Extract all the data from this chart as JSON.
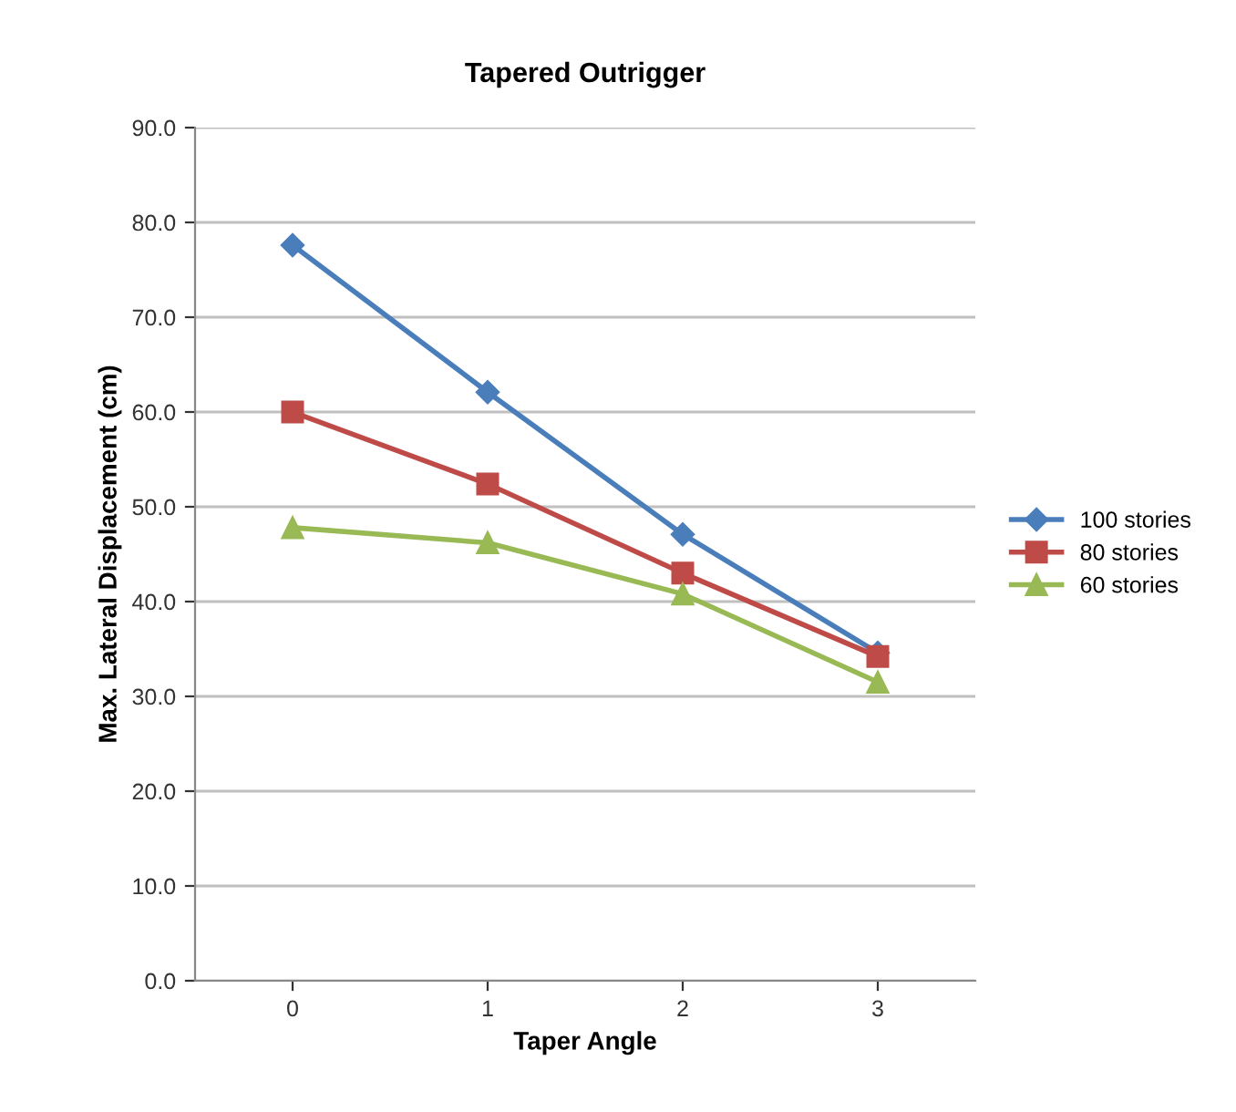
{
  "chart_data": {
    "type": "line",
    "title": "Tapered Outrigger",
    "xlabel": "Taper Angle",
    "ylabel": "Max. Lateral Displacement (cm)",
    "categories": [
      "0",
      "1",
      "2",
      "3"
    ],
    "series": [
      {
        "name": "100 stories",
        "color": "#4a7ebb",
        "marker": "diamond",
        "values": [
          77.6,
          62.1,
          47.1,
          34.6
        ]
      },
      {
        "name": "80 stories",
        "color": "#be4b48",
        "marker": "square",
        "values": [
          60.0,
          52.4,
          43.0,
          34.2
        ]
      },
      {
        "name": "60 stories",
        "color": "#98b954",
        "marker": "triangle",
        "values": [
          47.8,
          46.2,
          40.8,
          31.5
        ]
      }
    ],
    "ylim": [
      0,
      90
    ],
    "yticks": [
      {
        "value": 0,
        "label": "0.0"
      },
      {
        "value": 10,
        "label": "10.0"
      },
      {
        "value": 20,
        "label": "20.0"
      },
      {
        "value": 30,
        "label": "30.0"
      },
      {
        "value": 40,
        "label": "40.0"
      },
      {
        "value": 50,
        "label": "50.0"
      },
      {
        "value": 60,
        "label": "60.0"
      },
      {
        "value": 70,
        "label": "70.0"
      },
      {
        "value": 80,
        "label": "80.0"
      },
      {
        "value": 90,
        "label": "90.0"
      }
    ],
    "grid": "y",
    "legend": "right"
  }
}
